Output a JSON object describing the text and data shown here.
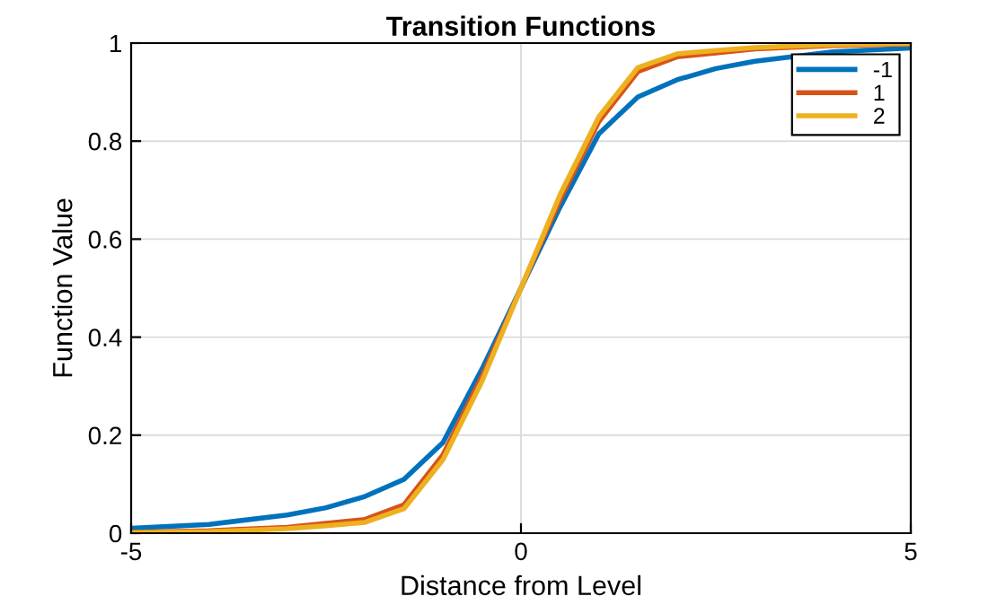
{
  "chart_data": {
    "type": "line",
    "title": "Transition Functions",
    "xlabel": "Distance from Level",
    "ylabel": "Function Value",
    "x": [
      -5,
      -4,
      -3,
      -2.5,
      -2,
      -1.5,
      -1,
      -0.5,
      0,
      0.5,
      1,
      1.5,
      2,
      2.5,
      3,
      4,
      5
    ],
    "series": [
      {
        "name": "-1",
        "color": "#0072bd",
        "values": [
          0.01,
          0.018,
          0.037,
          0.052,
          0.075,
          0.11,
          0.185,
          0.335,
          0.5,
          0.665,
          0.815,
          0.89,
          0.925,
          0.948,
          0.963,
          0.982,
          0.99
        ]
      },
      {
        "name": "1",
        "color": "#d95319",
        "values": [
          0.002,
          0.005,
          0.012,
          0.02,
          0.028,
          0.058,
          0.16,
          0.32,
          0.5,
          0.68,
          0.84,
          0.942,
          0.972,
          0.98,
          0.988,
          0.995,
          0.998
        ]
      },
      {
        "name": "2",
        "color": "#edb120",
        "values": [
          0.001,
          0.003,
          0.009,
          0.015,
          0.022,
          0.05,
          0.15,
          0.31,
          0.5,
          0.69,
          0.85,
          0.95,
          0.978,
          0.985,
          0.991,
          0.997,
          0.999
        ]
      }
    ],
    "xlim": [
      -5,
      5
    ],
    "xticks": [
      -5,
      0,
      5
    ],
    "ylim": [
      0,
      1
    ],
    "yticks": [
      0,
      0.2,
      0.4,
      0.6,
      0.8,
      1
    ],
    "grid": true,
    "legend": "top right"
  }
}
